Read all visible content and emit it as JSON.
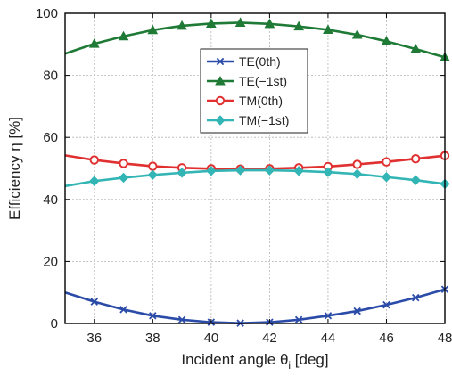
{
  "chart_data": {
    "type": "line",
    "title": "",
    "xlabel": {
      "main": "Incident angle θ",
      "sub": "i",
      "unit": " [deg]"
    },
    "ylabel": "Efficiency η [%]",
    "xlim": [
      35,
      48
    ],
    "ylim": [
      0,
      100
    ],
    "xticks": [
      36,
      38,
      40,
      42,
      44,
      46,
      48
    ],
    "yticks": [
      0,
      20,
      40,
      60,
      80,
      100
    ],
    "grid": true,
    "legend_position": "upper-center",
    "x": [
      35,
      36,
      37,
      38,
      39,
      40,
      41,
      42,
      43,
      44,
      45,
      46,
      47,
      48
    ],
    "series": [
      {
        "name": "TE(0th)",
        "color": "#2b4ba8",
        "marker": "x",
        "values": [
          10,
          7,
          4.5,
          2.5,
          1.2,
          0.4,
          0.1,
          0.4,
          1.2,
          2.5,
          4,
          6,
          8.3,
          11
        ]
      },
      {
        "name": "TE(−1st)",
        "color": "#1f7a36",
        "marker": "triangle",
        "values": [
          87,
          90.2,
          92.6,
          94.6,
          96,
          96.7,
          97,
          96.6,
          95.8,
          94.7,
          93.1,
          91,
          88.5,
          85.8
        ]
      },
      {
        "name": "TM(0th)",
        "color": "#e03030",
        "marker": "circle",
        "values": [
          54.2,
          52.7,
          51.6,
          50.7,
          50.2,
          49.9,
          49.8,
          49.9,
          50.2,
          50.6,
          51.3,
          52.1,
          53.1,
          54.1
        ]
      },
      {
        "name": "TM(−1st)",
        "color": "#33b5b5",
        "marker": "diamond",
        "values": [
          44.3,
          45.9,
          47,
          47.9,
          48.6,
          49.2,
          49.4,
          49.4,
          49.2,
          48.8,
          48.2,
          47.2,
          46.2,
          45
        ]
      }
    ]
  }
}
